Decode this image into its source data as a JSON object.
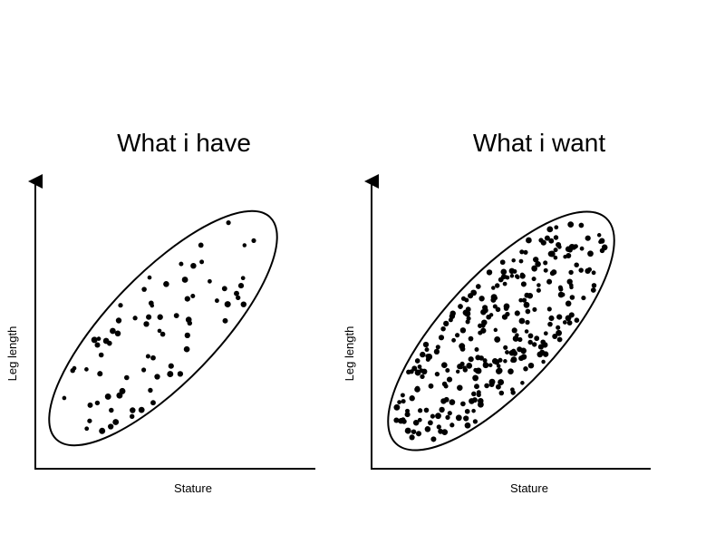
{
  "panels": [
    {
      "title": "What i have",
      "xlabel": "Stature",
      "ylabel": "Leg length",
      "density": "sparse"
    },
    {
      "title": "What i want",
      "xlabel": "Stature",
      "ylabel": "Leg length",
      "density": "dense"
    }
  ],
  "chart_data": [
    {
      "type": "scatter",
      "title": "What i have",
      "xlabel": "Stature",
      "ylabel": "Leg length",
      "grid": false,
      "point_count": 75,
      "enclosure": "ellipse"
    },
    {
      "type": "scatter",
      "title": "What i want",
      "xlabel": "Stature",
      "ylabel": "Leg length",
      "grid": false,
      "point_count": 300,
      "enclosure": "ellipse"
    }
  ]
}
